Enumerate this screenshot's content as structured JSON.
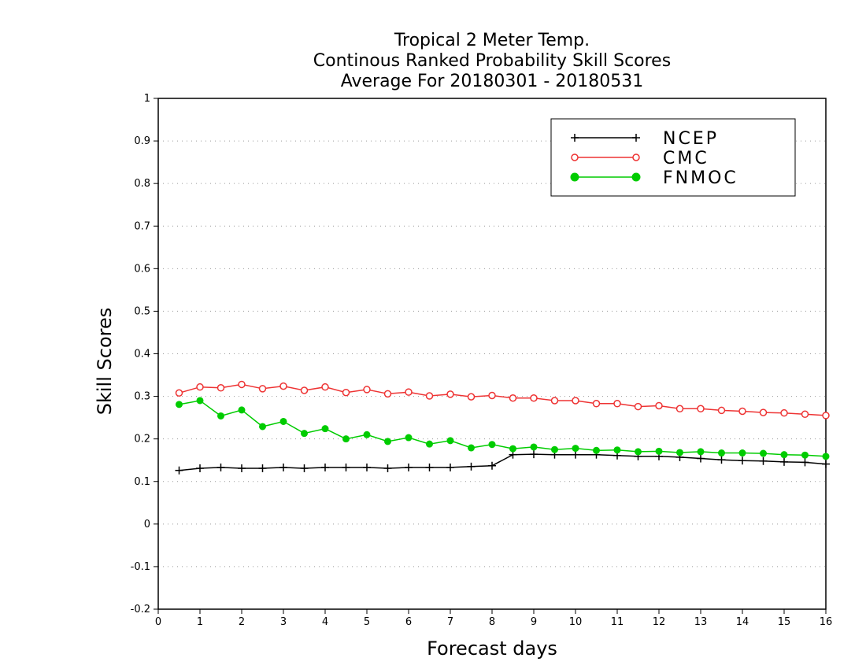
{
  "chart_data": {
    "type": "line",
    "title_lines": [
      "Tropical 2 Meter Temp.",
      "Continous Ranked Probability Skill Scores",
      "Average For 20180301 - 20180531"
    ],
    "xlabel": "Forecast days",
    "ylabel": "Skill Scores",
    "xlim": [
      0,
      16
    ],
    "ylim": [
      -0.2,
      1
    ],
    "x_ticks": [
      "0",
      "1",
      "2",
      "3",
      "4",
      "5",
      "6",
      "7",
      "8",
      "9",
      "10",
      "11",
      "12",
      "13",
      "14",
      "15",
      "16"
    ],
    "y_ticks": [
      "1",
      "0.9",
      "0.8",
      "0.7",
      "0.6",
      "0.5",
      "0.4",
      "0.3",
      "0.2",
      "0.1",
      "0",
      "-0.1",
      "-0.2"
    ],
    "y_tick_values": [
      1,
      0.9,
      0.8,
      0.7,
      0.6,
      0.5,
      0.4,
      0.3,
      0.2,
      0.1,
      0,
      -0.1,
      -0.2
    ],
    "grid": "horizontal dotted",
    "legend_position": "top-right",
    "x": [
      0.5,
      1,
      1.5,
      2,
      2.5,
      3,
      3.5,
      4,
      4.5,
      5,
      5.5,
      6,
      6.5,
      7,
      7.5,
      8,
      8.5,
      9,
      9.5,
      10,
      10.5,
      11,
      11.5,
      12,
      12.5,
      13,
      13.5,
      14,
      14.5,
      15,
      15.5,
      16
    ],
    "series": [
      {
        "name": "NCEP",
        "color": "#000000",
        "marker": "plus",
        "values": [
          0.126,
          0.131,
          0.133,
          0.131,
          0.131,
          0.133,
          0.131,
          0.133,
          0.133,
          0.133,
          0.131,
          0.133,
          0.133,
          0.133,
          0.135,
          0.137,
          0.163,
          0.164,
          0.163,
          0.163,
          0.163,
          0.161,
          0.159,
          0.159,
          0.157,
          0.154,
          0.151,
          0.149,
          0.148,
          0.146,
          0.145,
          0.141
        ]
      },
      {
        "name": "CMC",
        "color": "#ee3333",
        "marker": "open-circle",
        "values": [
          0.308,
          0.322,
          0.32,
          0.328,
          0.318,
          0.324,
          0.314,
          0.322,
          0.309,
          0.316,
          0.306,
          0.31,
          0.301,
          0.305,
          0.299,
          0.302,
          0.296,
          0.296,
          0.29,
          0.29,
          0.283,
          0.283,
          0.276,
          0.278,
          0.271,
          0.271,
          0.267,
          0.265,
          0.262,
          0.261,
          0.258,
          0.255
        ]
      },
      {
        "name": "FNMOC",
        "color": "#00cc00",
        "marker": "filled-circle",
        "values": [
          0.281,
          0.29,
          0.254,
          0.268,
          0.229,
          0.241,
          0.213,
          0.224,
          0.2,
          0.21,
          0.194,
          0.203,
          0.188,
          0.196,
          0.179,
          0.187,
          0.177,
          0.181,
          0.175,
          0.178,
          0.173,
          0.174,
          0.17,
          0.171,
          0.168,
          0.17,
          0.167,
          0.167,
          0.166,
          0.163,
          0.162,
          0.159
        ]
      }
    ]
  }
}
